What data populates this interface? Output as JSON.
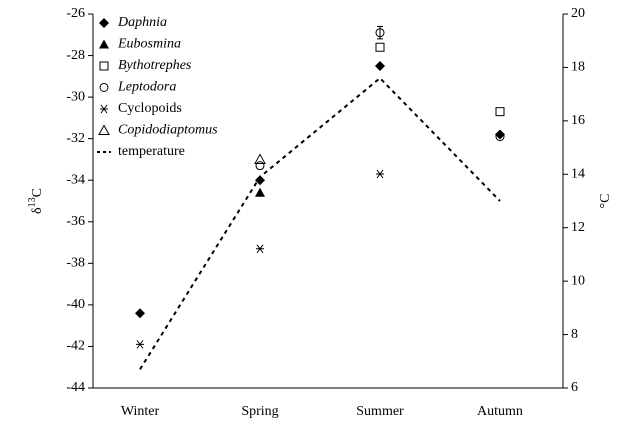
{
  "chart_data": {
    "type": "scatter",
    "ylabel_parts": [
      "δ",
      "13",
      "C"
    ],
    "y2label": "°C",
    "categories": [
      "Winter",
      "Spring",
      "Summer",
      "Autumn"
    ],
    "ylim": [
      -44,
      -26
    ],
    "yticks": [
      -44,
      -42,
      -40,
      -38,
      -36,
      -34,
      -32,
      -30,
      -28,
      -26
    ],
    "y2lim": [
      6,
      20
    ],
    "y2ticks": [
      6,
      8,
      10,
      12,
      14,
      16,
      18,
      20
    ],
    "legend": "upper left",
    "series": [
      {
        "name": "Daphnia",
        "italic": true,
        "marker": "diamond",
        "color": "#000000",
        "values": [
          -40.4,
          -34.0,
          -28.5,
          -31.8
        ]
      },
      {
        "name": "Eubosmina",
        "italic": true,
        "marker": "triangle",
        "color": "#000000",
        "values": [
          null,
          -34.6,
          null,
          null
        ]
      },
      {
        "name": "Bythotrephes",
        "italic": true,
        "marker": "square-open",
        "color": "#000000",
        "values": [
          null,
          null,
          -27.6,
          -30.7
        ]
      },
      {
        "name": "Leptodora",
        "italic": true,
        "marker": "circle-open",
        "color": "#000000",
        "values": [
          null,
          -33.3,
          -26.9,
          -31.9
        ],
        "errors": [
          null,
          null,
          0.3,
          null
        ]
      },
      {
        "name": "Cyclopoids",
        "italic": false,
        "marker": "asterisk",
        "color": "#000000",
        "values": [
          -41.9,
          -37.3,
          -33.7,
          null
        ]
      },
      {
        "name": "Copidodiaptomus",
        "italic": true,
        "marker": "triangle-open",
        "color": "#000000",
        "values": [
          null,
          -33.0,
          null,
          null
        ]
      },
      {
        "name": "temperature",
        "italic": false,
        "marker": "dashed-line",
        "axis": "y2",
        "color": "#000000",
        "values": [
          6.7,
          13.9,
          17.6,
          13.0
        ]
      }
    ]
  }
}
